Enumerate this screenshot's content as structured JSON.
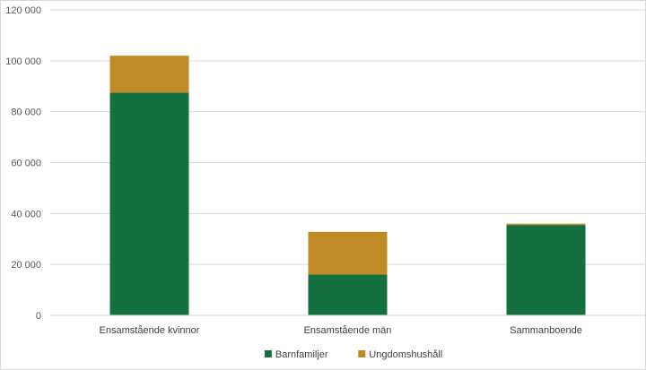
{
  "chart_data": {
    "type": "bar",
    "stacked": true,
    "categories": [
      "Ensamstående kvinnor",
      "Ensamstående män",
      "Sammanboende"
    ],
    "series": [
      {
        "name": "Barnfamiljer",
        "color": "#15703f",
        "values": [
          87500,
          16000,
          35500
        ]
      },
      {
        "name": "Ungdomshushåll",
        "color": "#c08b24",
        "values": [
          14500,
          16800,
          500
        ]
      }
    ],
    "ylim": [
      0,
      120000
    ],
    "yticks": [
      0,
      20000,
      40000,
      60000,
      80000,
      100000,
      120000
    ],
    "ytick_labels": [
      "0",
      "20 000",
      "40 000",
      "60 000",
      "80 000",
      "100 000",
      "120 000"
    ],
    "grid": true,
    "legend_position": "bottom",
    "title": "",
    "xlabel": "",
    "ylabel": ""
  }
}
